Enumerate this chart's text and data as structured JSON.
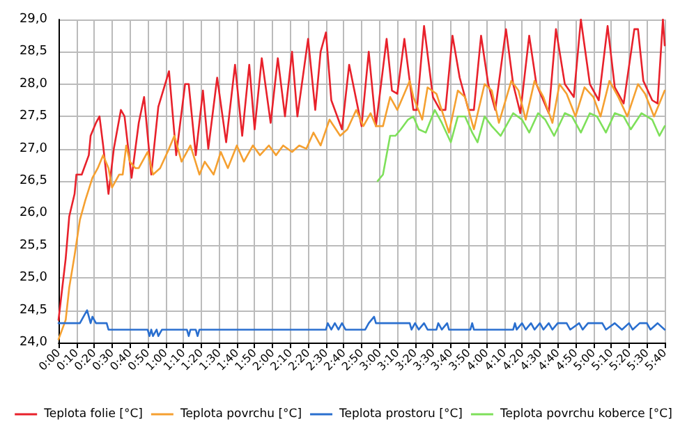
{
  "chart_data": {
    "type": "line",
    "xlim": [
      0,
      5.6667
    ],
    "ylim": [
      24,
      29
    ],
    "xticks": [
      {
        "value": 0,
        "label": "0:00"
      },
      {
        "value": 0.1667,
        "label": "0:10"
      },
      {
        "value": 0.3333,
        "label": "0:20"
      },
      {
        "value": 0.5,
        "label": "0:30"
      },
      {
        "value": 0.6667,
        "label": "0:40"
      },
      {
        "value": 0.8333,
        "label": "0:50"
      },
      {
        "value": 1,
        "label": "1:00"
      },
      {
        "value": 1.1667,
        "label": "1:10"
      },
      {
        "value": 1.3333,
        "label": "1:20"
      },
      {
        "value": 1.5,
        "label": "1:30"
      },
      {
        "value": 1.6667,
        "label": "1:40"
      },
      {
        "value": 1.8333,
        "label": "1:50"
      },
      {
        "value": 2,
        "label": "2:00"
      },
      {
        "value": 2.1667,
        "label": "2:10"
      },
      {
        "value": 2.3333,
        "label": "2:20"
      },
      {
        "value": 2.5,
        "label": "2:30"
      },
      {
        "value": 2.6667,
        "label": "2:40"
      },
      {
        "value": 2.8333,
        "label": "2:50"
      },
      {
        "value": 3,
        "label": "3:00"
      },
      {
        "value": 3.1667,
        "label": "3:10"
      },
      {
        "value": 3.3333,
        "label": "3:20"
      },
      {
        "value": 3.5,
        "label": "3:30"
      },
      {
        "value": 3.6667,
        "label": "3:40"
      },
      {
        "value": 3.8333,
        "label": "3:50"
      },
      {
        "value": 4,
        "label": "4:00"
      },
      {
        "value": 4.1667,
        "label": "4:10"
      },
      {
        "value": 4.3333,
        "label": "4:20"
      },
      {
        "value": 4.5,
        "label": "4:30"
      },
      {
        "value": 4.6667,
        "label": "4:40"
      },
      {
        "value": 4.8333,
        "label": "4:50"
      },
      {
        "value": 5,
        "label": "5:00"
      },
      {
        "value": 5.1667,
        "label": "5:10"
      },
      {
        "value": 5.3333,
        "label": "5:20"
      },
      {
        "value": 5.5,
        "label": "5:30"
      },
      {
        "value": 5.6667,
        "label": "5:40"
      }
    ],
    "yticks": [
      {
        "value": 24,
        "label": "24,0"
      },
      {
        "value": 24.5,
        "label": "24,5"
      },
      {
        "value": 25,
        "label": "25,0"
      },
      {
        "value": 25.5,
        "label": "25,5"
      },
      {
        "value": 26,
        "label": "26,0"
      },
      {
        "value": 26.5,
        "label": "26,5"
      },
      {
        "value": 27,
        "label": "27,0"
      },
      {
        "value": 27.5,
        "label": "27,5"
      },
      {
        "value": 28,
        "label": "28,0"
      },
      {
        "value": 28.5,
        "label": "28,5"
      },
      {
        "value": 29,
        "label": "29,0"
      }
    ],
    "grid": true,
    "legend": "bottom",
    "marker": "none",
    "line_style": "solid",
    "series": [
      {
        "name": "Teplota folie [°C]",
        "color": "#e8212b",
        "x": [
          0,
          0.067,
          0.1,
          0.15,
          0.167,
          0.217,
          0.283,
          0.3,
          0.35,
          0.383,
          0.417,
          0.467,
          0.517,
          0.583,
          0.617,
          0.683,
          0.75,
          0.8,
          0.867,
          0.933,
          1.033,
          1.1,
          1.183,
          1.217,
          1.283,
          1.35,
          1.4,
          1.483,
          1.567,
          1.65,
          1.717,
          1.783,
          1.833,
          1.9,
          1.983,
          2.05,
          2.117,
          2.183,
          2.233,
          2.333,
          2.4,
          2.45,
          2.5,
          2.55,
          2.65,
          2.717,
          2.833,
          2.9,
          2.967,
          3.067,
          3.117,
          3.167,
          3.233,
          3.317,
          3.35,
          3.417,
          3.5,
          3.567,
          3.617,
          3.683,
          3.75,
          3.833,
          3.883,
          3.95,
          4.017,
          4.083,
          4.183,
          4.25,
          4.317,
          4.4,
          4.467,
          4.583,
          4.65,
          4.733,
          4.817,
          4.883,
          4.967,
          5.05,
          5.133,
          5.2,
          5.283,
          5.383,
          5.417,
          5.467,
          5.55,
          5.6,
          5.65,
          5.6667
        ],
        "values": [
          24.35,
          25.3,
          25.95,
          26.3,
          26.6,
          26.6,
          26.9,
          27.2,
          27.4,
          27.5,
          27.05,
          26.3,
          27.0,
          27.6,
          27.5,
          26.55,
          27.4,
          27.8,
          26.6,
          27.65,
          28.2,
          26.9,
          28.0,
          28.0,
          26.9,
          27.9,
          27.0,
          28.1,
          27.1,
          28.3,
          27.2,
          28.3,
          27.3,
          28.4,
          27.4,
          28.4,
          27.5,
          28.5,
          27.5,
          28.7,
          27.6,
          28.5,
          28.8,
          27.75,
          27.3,
          28.3,
          27.35,
          28.5,
          27.35,
          28.7,
          27.9,
          27.85,
          28.7,
          27.6,
          27.6,
          28.9,
          27.8,
          27.6,
          27.6,
          28.75,
          28.1,
          27.6,
          27.6,
          28.75,
          28.0,
          27.6,
          28.85,
          28.0,
          27.55,
          28.75,
          28.0,
          27.55,
          28.85,
          28.0,
          27.8,
          29.0,
          28.0,
          27.75,
          28.9,
          27.95,
          27.7,
          28.85,
          28.85,
          28.05,
          27.75,
          27.7,
          29.0,
          28.6
        ]
      },
      {
        "name": "Teplota povrchu [°C]",
        "color": "#f5a030",
        "x": [
          0,
          0.067,
          0.1,
          0.15,
          0.2,
          0.25,
          0.317,
          0.367,
          0.417,
          0.467,
          0.5,
          0.567,
          0.6,
          0.633,
          0.667,
          0.717,
          0.75,
          0.833,
          0.883,
          0.95,
          1.033,
          1.083,
          1.15,
          1.233,
          1.317,
          1.367,
          1.45,
          1.517,
          1.583,
          1.667,
          1.733,
          1.817,
          1.883,
          1.967,
          2.033,
          2.1,
          2.183,
          2.25,
          2.317,
          2.383,
          2.45,
          2.533,
          2.633,
          2.7,
          2.783,
          2.85,
          2.917,
          2.967,
          3.033,
          3.1,
          3.167,
          3.283,
          3.317,
          3.4,
          3.45,
          3.533,
          3.65,
          3.733,
          3.8,
          3.883,
          3.983,
          4.05,
          4.117,
          4.233,
          4.3,
          4.367,
          4.45,
          4.533,
          4.617,
          4.683,
          4.75,
          4.833,
          4.917,
          5.0,
          5.067,
          5.15,
          5.233,
          5.317,
          5.417,
          5.483,
          5.567,
          5.6667
        ],
        "values": [
          24.05,
          24.35,
          24.85,
          25.35,
          25.9,
          26.2,
          26.55,
          26.7,
          26.9,
          26.7,
          26.4,
          26.6,
          26.6,
          27.05,
          26.8,
          26.7,
          26.7,
          26.95,
          26.6,
          26.7,
          27.0,
          27.2,
          26.8,
          27.05,
          26.6,
          26.8,
          26.6,
          26.95,
          26.7,
          27.05,
          26.8,
          27.05,
          26.9,
          27.05,
          26.9,
          27.05,
          26.95,
          27.05,
          27.0,
          27.25,
          27.05,
          27.45,
          27.2,
          27.3,
          27.6,
          27.35,
          27.55,
          27.35,
          27.35,
          27.8,
          27.6,
          28.05,
          27.8,
          27.45,
          27.95,
          27.85,
          27.25,
          27.9,
          27.8,
          27.3,
          28.0,
          27.9,
          27.4,
          28.05,
          27.9,
          27.45,
          28.05,
          27.8,
          27.4,
          28.0,
          27.85,
          27.5,
          27.95,
          27.8,
          27.5,
          28.05,
          27.8,
          27.5,
          28.0,
          27.85,
          27.5,
          27.9
        ]
      },
      {
        "name": "Teplota prostoru [°C]",
        "color": "#2a6fcf",
        "x": [
          0,
          0.2,
          0.233,
          0.267,
          0.3,
          0.317,
          0.35,
          0.45,
          0.467,
          0.833,
          0.85,
          0.867,
          0.883,
          0.917,
          0.933,
          0.967,
          1.2,
          1.217,
          1.233,
          1.283,
          1.3,
          1.317,
          2.5,
          2.517,
          2.55,
          2.583,
          2.617,
          2.65,
          2.683,
          2.867,
          2.9,
          2.95,
          2.967,
          3.283,
          3.3,
          3.333,
          3.367,
          3.417,
          3.45,
          3.533,
          3.55,
          3.583,
          3.633,
          3.65,
          3.85,
          3.867,
          3.883,
          4.25,
          4.267,
          4.283,
          4.333,
          4.367,
          4.417,
          4.45,
          4.5,
          4.533,
          4.583,
          4.617,
          4.667,
          4.75,
          4.783,
          4.867,
          4.9,
          4.95,
          5.083,
          5.117,
          5.2,
          5.267,
          5.333,
          5.367,
          5.433,
          5.5,
          5.533,
          5.6,
          5.6667
        ],
        "values": [
          24.3,
          24.3,
          24.4,
          24.5,
          24.3,
          24.4,
          24.3,
          24.3,
          24.2,
          24.2,
          24.1,
          24.2,
          24.1,
          24.2,
          24.1,
          24.2,
          24.2,
          24.1,
          24.2,
          24.2,
          24.1,
          24.2,
          24.2,
          24.3,
          24.2,
          24.3,
          24.2,
          24.3,
          24.2,
          24.2,
          24.3,
          24.4,
          24.3,
          24.3,
          24.2,
          24.3,
          24.2,
          24.3,
          24.2,
          24.2,
          24.3,
          24.2,
          24.3,
          24.2,
          24.2,
          24.3,
          24.2,
          24.2,
          24.3,
          24.2,
          24.3,
          24.2,
          24.3,
          24.2,
          24.3,
          24.2,
          24.3,
          24.2,
          24.3,
          24.3,
          24.2,
          24.3,
          24.2,
          24.3,
          24.3,
          24.2,
          24.3,
          24.2,
          24.3,
          24.2,
          24.3,
          24.3,
          24.2,
          24.3,
          24.2
        ]
      },
      {
        "name": "Teplota povrchu koberce [°C]",
        "color": "#7ee05a",
        "x": [
          2.983,
          3.033,
          3.1,
          3.15,
          3.2,
          3.267,
          3.317,
          3.367,
          3.433,
          3.517,
          3.583,
          3.667,
          3.733,
          3.8,
          3.867,
          3.917,
          3.983,
          4.05,
          4.133,
          4.25,
          4.333,
          4.4,
          4.483,
          4.55,
          4.633,
          4.733,
          4.8,
          4.883,
          4.967,
          5.033,
          5.117,
          5.2,
          5.283,
          5.35,
          5.45,
          5.55,
          5.617,
          5.6667
        ],
        "values": [
          26.5,
          26.6,
          27.2,
          27.2,
          27.3,
          27.45,
          27.5,
          27.3,
          27.25,
          27.6,
          27.4,
          27.1,
          27.5,
          27.5,
          27.25,
          27.1,
          27.5,
          27.35,
          27.2,
          27.55,
          27.45,
          27.25,
          27.55,
          27.45,
          27.2,
          27.55,
          27.5,
          27.25,
          27.55,
          27.5,
          27.25,
          27.55,
          27.5,
          27.3,
          27.55,
          27.45,
          27.2,
          27.35
        ]
      }
    ]
  }
}
